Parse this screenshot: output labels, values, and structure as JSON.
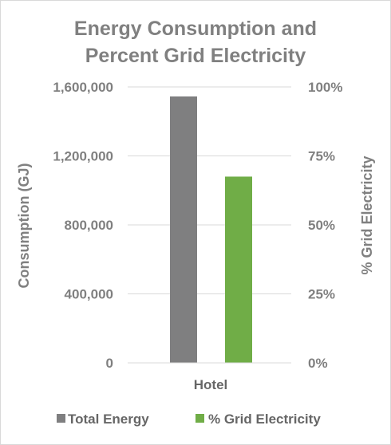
{
  "chart_data": {
    "type": "bar",
    "title_lines": [
      "Energy Consumption and",
      "Percent Grid Electricity"
    ],
    "categories": [
      "Hotel"
    ],
    "series": [
      {
        "name": "Total Energy",
        "values": [
          1545000
        ],
        "axis": "left",
        "color": "#7f7f80"
      },
      {
        "name": "% Grid Electricity",
        "values": [
          0.675
        ],
        "axis": "right",
        "color": "#70ad47"
      }
    ],
    "ylabel": "Consumption (GJ)",
    "ylabel_right": "% Grid Electricity",
    "ylim": [
      0,
      1600000
    ],
    "ylim_right": [
      0,
      1
    ],
    "yticks": [
      "0",
      "400,000",
      "800,000",
      "1,200,000",
      "1,600,000"
    ],
    "yticks_right": [
      "0%",
      "25%",
      "50%",
      "75%",
      "100%"
    ],
    "grid": true,
    "legend_position": "bottom"
  }
}
